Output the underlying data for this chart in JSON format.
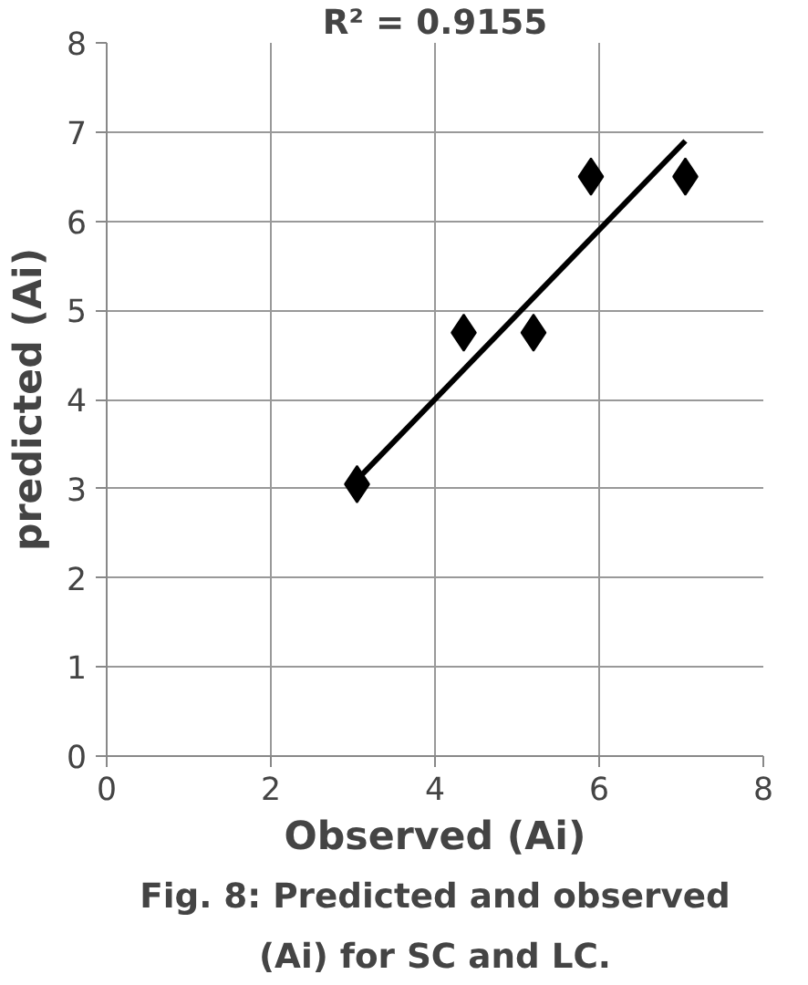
{
  "chart_data": {
    "type": "scatter",
    "xlabel": "Observed (Ai)",
    "ylabel": "predicted (Ai)",
    "x": [
      3.05,
      4.35,
      5.2,
      5.9,
      7.05
    ],
    "series": [
      {
        "color": "#000000",
        "values": [
          3.05,
          4.75,
          4.75,
          6.5,
          6.5
        ],
        "marker": "diamond"
      },
      {
        "type": "line",
        "color": "#000000",
        "x": [
          3.05,
          7.05
        ],
        "values": [
          3.1,
          6.9
        ]
      }
    ],
    "xlim": [
      0,
      8
    ],
    "xticks": [
      0,
      2,
      4,
      6,
      8
    ],
    "ylim": [
      0,
      8
    ],
    "yticks": [
      0,
      1,
      2,
      3,
      4,
      5,
      6,
      7,
      8
    ],
    "grid": true,
    "annotations": [
      "R² = 0.9155",
      "Fig. 8: Predicted and observed (Ai) for SC and LC."
    ]
  }
}
